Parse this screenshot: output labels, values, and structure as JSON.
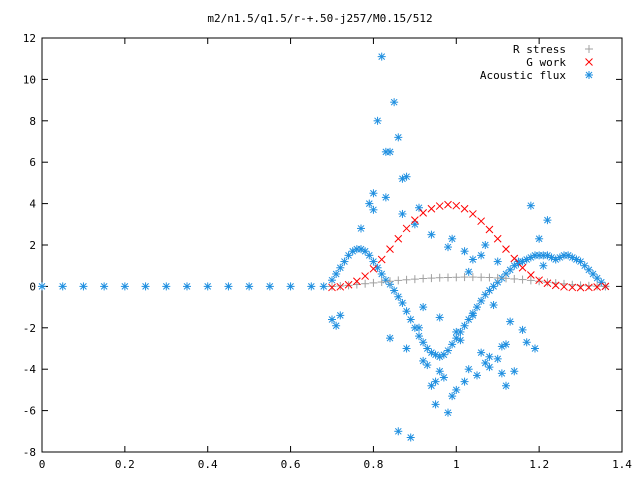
{
  "chart_data": {
    "type": "scatter",
    "title": "m2/n1.5/q1.5/r-+.50-j257/M0.15/512",
    "xlabel": "",
    "ylabel": "",
    "xlim": [
      0,
      1.4
    ],
    "ylim": [
      -8,
      12
    ],
    "x_ticks": [
      "0",
      "0.2",
      "0.4",
      "0.6",
      "0.8",
      "1",
      "1.2",
      "1.4"
    ],
    "y_ticks": [
      "-8",
      "-6",
      "-4",
      "-2",
      "0",
      "2",
      "4",
      "6",
      "8",
      "10",
      "12"
    ],
    "grid": false,
    "legend_position": "top-right",
    "series": [
      {
        "name": "R stress",
        "marker": "plus",
        "color": "#a0a0a0",
        "x": [
          0.7,
          0.72,
          0.74,
          0.76,
          0.78,
          0.8,
          0.82,
          0.84,
          0.86,
          0.88,
          0.9,
          0.92,
          0.94,
          0.96,
          0.98,
          1.0,
          1.02,
          1.04,
          1.06,
          1.08,
          1.1,
          1.12,
          1.14,
          1.16,
          1.18,
          1.2,
          1.22,
          1.24,
          1.26,
          1.28,
          1.3,
          1.32,
          1.34,
          1.36
        ],
        "y": [
          0.0,
          0.02,
          0.05,
          0.09,
          0.13,
          0.17,
          0.21,
          0.25,
          0.29,
          0.32,
          0.35,
          0.38,
          0.4,
          0.42,
          0.43,
          0.44,
          0.45,
          0.45,
          0.44,
          0.43,
          0.41,
          0.39,
          0.36,
          0.33,
          0.29,
          0.25,
          0.2,
          0.16,
          0.12,
          0.08,
          0.05,
          0.03,
          0.01,
          0.0
        ]
      },
      {
        "name": "G work",
        "marker": "cross",
        "color": "#ff0000",
        "x": [
          0.7,
          0.72,
          0.74,
          0.76,
          0.78,
          0.8,
          0.82,
          0.84,
          0.86,
          0.88,
          0.9,
          0.92,
          0.94,
          0.96,
          0.98,
          1.0,
          1.02,
          1.04,
          1.06,
          1.08,
          1.1,
          1.12,
          1.14,
          1.16,
          1.18,
          1.2,
          1.22,
          1.24,
          1.26,
          1.28,
          1.3,
          1.32,
          1.34,
          1.36
        ],
        "y": [
          -0.05,
          -0.02,
          0.08,
          0.25,
          0.5,
          0.85,
          1.3,
          1.8,
          2.3,
          2.8,
          3.2,
          3.55,
          3.75,
          3.88,
          3.95,
          3.9,
          3.75,
          3.5,
          3.15,
          2.75,
          2.3,
          1.8,
          1.35,
          0.9,
          0.55,
          0.3,
          0.15,
          0.05,
          -0.02,
          -0.05,
          -0.06,
          -0.05,
          -0.03,
          0.0
        ]
      },
      {
        "name": "Acoustic flux",
        "marker": "star",
        "color": "#1f8fe0",
        "x": [
          0.0,
          0.05,
          0.1,
          0.15,
          0.2,
          0.25,
          0.3,
          0.35,
          0.4,
          0.45,
          0.5,
          0.55,
          0.6,
          0.65,
          0.68,
          0.7,
          0.71,
          0.72,
          0.73,
          0.74,
          0.75,
          0.76,
          0.77,
          0.78,
          0.79,
          0.8,
          0.81,
          0.82,
          0.83,
          0.84,
          0.85,
          0.86,
          0.87,
          0.88,
          0.89,
          0.9,
          0.91,
          0.92,
          0.93,
          0.94,
          0.95,
          0.96,
          0.97,
          0.98,
          0.99,
          1.0,
          1.01,
          1.02,
          1.03,
          1.04,
          1.05,
          1.06,
          1.07,
          1.08,
          1.09,
          1.1,
          1.11,
          1.12,
          1.13,
          1.14,
          1.15,
          1.16,
          1.17,
          1.18,
          1.19,
          1.2,
          1.21,
          1.22,
          1.23,
          1.24,
          1.25,
          1.26,
          1.27,
          1.28,
          1.29,
          1.3,
          1.31,
          1.32,
          1.33,
          1.34,
          1.35,
          1.36,
          0.82,
          0.85,
          0.81,
          0.84,
          0.86,
          0.88,
          0.8,
          0.83,
          0.87,
          0.79,
          0.95,
          0.98,
          1.0,
          1.02,
          1.05,
          1.08,
          1.1,
          1.12,
          0.93,
          0.97,
          1.01,
          1.06,
          1.11,
          0.96,
          0.99,
          1.03,
          0.92,
          0.89,
          0.91,
          0.94,
          1.04,
          1.07,
          1.09,
          1.13,
          1.15,
          1.18,
          1.2,
          1.22,
          0.86,
          0.9,
          0.94,
          0.98,
          1.02,
          1.06,
          1.1,
          0.84,
          0.88,
          0.92,
          0.96,
          1.0,
          1.04,
          1.08,
          1.12,
          1.16,
          0.77,
          0.8,
          0.83,
          0.87,
          0.91,
          0.95,
          0.99,
          1.03,
          1.07,
          1.11,
          1.14,
          1.17,
          1.19,
          1.21,
          0.71,
          0.7,
          0.72
        ],
        "y": [
          0.0,
          0.0,
          0.0,
          0.0,
          0.0,
          0.0,
          0.0,
          0.0,
          0.0,
          0.0,
          0.0,
          0.0,
          0.0,
          0.0,
          0.0,
          0.3,
          0.6,
          0.9,
          1.2,
          1.5,
          1.7,
          1.8,
          1.8,
          1.7,
          1.5,
          1.2,
          0.9,
          0.6,
          0.3,
          0.1,
          -0.2,
          -0.5,
          -0.8,
          -1.2,
          -1.6,
          -2.0,
          -2.4,
          -2.7,
          -3.0,
          -3.2,
          -3.3,
          -3.4,
          -3.3,
          -3.1,
          -2.8,
          -2.5,
          -2.2,
          -1.9,
          -1.6,
          -1.3,
          -1.0,
          -0.7,
          -0.4,
          -0.2,
          0.0,
          0.2,
          0.4,
          0.6,
          0.8,
          1.0,
          1.1,
          1.2,
          1.3,
          1.4,
          1.5,
          1.5,
          1.5,
          1.5,
          1.4,
          1.3,
          1.4,
          1.5,
          1.5,
          1.4,
          1.3,
          1.2,
          1.0,
          0.8,
          0.6,
          0.4,
          0.2,
          0.0,
          11.1,
          8.9,
          8.0,
          6.5,
          7.2,
          5.3,
          3.7,
          6.5,
          5.2,
          4.0,
          -5.7,
          -6.1,
          -5.0,
          -4.6,
          -4.3,
          -3.9,
          -3.5,
          -4.8,
          -3.8,
          -4.4,
          -2.6,
          -3.2,
          -2.9,
          -1.5,
          2.3,
          0.7,
          -1.0,
          -7.3,
          -2.0,
          -4.8,
          1.3,
          2.0,
          -0.9,
          -1.7,
          1.2,
          3.9,
          2.3,
          3.2,
          -7.0,
          3.0,
          2.5,
          1.9,
          1.7,
          1.5,
          1.2,
          -2.5,
          -3.0,
          -3.6,
          -4.1,
          -2.2,
          -1.4,
          -3.4,
          -2.8,
          -2.1,
          2.8,
          4.5,
          4.3,
          3.5,
          3.8,
          -4.6,
          -5.3,
          -4.0,
          -3.7,
          -4.2,
          -4.1,
          -2.7,
          -3.0,
          1.0,
          -1.9,
          -1.6,
          -1.4
        ]
      }
    ]
  }
}
